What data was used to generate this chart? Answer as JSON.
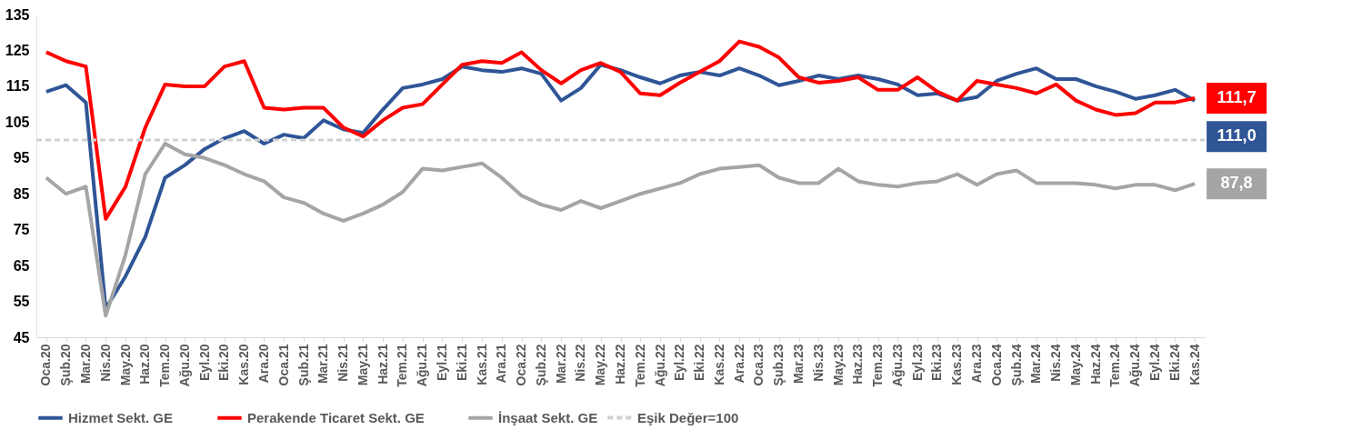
{
  "chart_data": {
    "type": "line",
    "categories": [
      "Oca.20",
      "Şub.20",
      "Mar.20",
      "Nis.20",
      "May.20",
      "Haz.20",
      "Tem.20",
      "Ağu.20",
      "Eyl.20",
      "Eki.20",
      "Kas.20",
      "Ara.20",
      "Oca.21",
      "Şub.21",
      "Mar.21",
      "Nis.21",
      "May.21",
      "Haz.21",
      "Tem.21",
      "Ağu.21",
      "Eyl.21",
      "Eki.21",
      "Kas.21",
      "Ara.21",
      "Oca.22",
      "Şub.22",
      "Mar.22",
      "Nis.22",
      "May.22",
      "Haz.22",
      "Tem.22",
      "Ağu.22",
      "Eyl.22",
      "Eki.22",
      "Kas.22",
      "Ara.22",
      "Oca.23",
      "Şub.23",
      "Mar.23",
      "Nis.23",
      "May.23",
      "Haz.23",
      "Tem.23",
      "Ağu.23",
      "Eyl.23",
      "Eki.23",
      "Kas.23",
      "Ara.23",
      "Oca.24",
      "Şub.24",
      "Mar.24",
      "Nis.24",
      "May.24",
      "Haz.24",
      "Tem.24",
      "Ağu.24",
      "Eyl.24",
      "Eki.24",
      "Kas.24"
    ],
    "series": [
      {
        "name": "Hizmet Sekt. GE",
        "color": "#2f5597",
        "values": [
          113.5,
          115.3,
          110.5,
          53,
          62,
          73,
          89.5,
          93,
          97.5,
          100.5,
          102.5,
          99,
          101.5,
          100.5,
          105.5,
          103,
          102,
          108.5,
          114.5,
          115.5,
          117,
          120.5,
          119.5,
          119,
          120,
          118.5,
          111,
          114.5,
          121,
          119.5,
          117.5,
          115.8,
          118,
          119,
          118,
          120,
          118,
          115.3,
          116.5,
          118,
          117,
          118,
          117,
          115.5,
          112.5,
          113,
          111,
          112,
          116.5,
          118.5,
          120,
          117,
          117,
          115,
          113.5,
          111.5,
          112.5,
          114,
          111.0
        ],
        "value_labels": [
          null,
          null,
          null,
          null,
          null,
          null,
          null,
          null,
          null,
          null,
          null,
          null,
          null,
          null,
          null,
          null,
          null,
          null,
          null,
          null,
          null,
          null,
          null,
          null,
          null,
          null,
          null,
          null,
          null,
          null,
          null,
          null,
          null,
          null,
          null,
          null,
          null,
          null,
          null,
          null,
          null,
          null,
          null,
          null,
          null,
          null,
          null,
          null,
          null,
          null,
          null,
          null,
          null,
          null,
          null,
          null,
          null,
          null,
          "111,0"
        ]
      },
      {
        "name": "Perakende Ticaret Sekt. GE",
        "color": "#ff0000",
        "values": [
          124.5,
          122,
          120.5,
          78,
          87,
          103.5,
          115.5,
          115,
          115,
          120.5,
          122,
          109,
          108.5,
          109,
          109,
          103.5,
          101,
          105.5,
          109,
          110,
          115.5,
          121,
          122,
          121.5,
          124.5,
          119.5,
          115.8,
          119.5,
          121.5,
          119,
          113,
          112.5,
          116,
          119,
          122,
          127.5,
          126,
          123,
          117.5,
          116,
          116.5,
          117.5,
          114,
          114,
          117.5,
          113.5,
          111,
          116.5,
          115.5,
          114.5,
          113,
          115.5,
          111,
          108.5,
          107,
          107.5,
          110.5,
          110.5,
          111.7
        ],
        "value_labels": [
          null,
          null,
          null,
          null,
          null,
          null,
          null,
          null,
          null,
          null,
          null,
          null,
          null,
          null,
          null,
          null,
          null,
          null,
          null,
          null,
          null,
          null,
          null,
          null,
          null,
          null,
          null,
          null,
          null,
          null,
          null,
          null,
          null,
          null,
          null,
          null,
          null,
          null,
          null,
          null,
          null,
          null,
          null,
          null,
          null,
          null,
          null,
          null,
          null,
          null,
          null,
          null,
          null,
          null,
          null,
          null,
          null,
          null,
          "111,7"
        ]
      },
      {
        "name": "İnşaat Sekt. GE",
        "color": "#a5a5a5",
        "values": [
          89.5,
          85,
          87,
          51,
          68,
          90.5,
          99,
          96,
          95,
          93,
          90.5,
          88.5,
          84,
          82.5,
          79.5,
          77.5,
          79.5,
          82,
          85.5,
          92,
          91.5,
          92.5,
          93.5,
          89.5,
          84.5,
          82,
          80.5,
          83,
          81,
          83,
          85,
          86.5,
          88,
          90.5,
          92,
          92.5,
          93,
          89.5,
          88,
          88,
          92,
          88.5,
          87.5,
          87,
          88,
          88.5,
          90.5,
          87.5,
          90.5,
          91.5,
          88,
          88,
          88,
          87.5,
          86.5,
          87.5,
          87.5,
          86,
          87.8
        ],
        "value_labels": [
          null,
          null,
          null,
          null,
          null,
          null,
          null,
          null,
          null,
          null,
          null,
          null,
          null,
          null,
          null,
          null,
          null,
          null,
          null,
          null,
          null,
          null,
          null,
          null,
          null,
          null,
          null,
          null,
          null,
          null,
          null,
          null,
          null,
          null,
          null,
          null,
          null,
          null,
          null,
          null,
          null,
          null,
          null,
          null,
          null,
          null,
          null,
          null,
          null,
          null,
          null,
          null,
          null,
          null,
          null,
          null,
          null,
          null,
          "87,8"
        ]
      }
    ],
    "ref_lines": [
      {
        "axis": "y",
        "value": 100,
        "label": "Eşik Değer=100",
        "color": "#d0d0d0",
        "line_style": "dashed"
      }
    ],
    "ylim": [
      45,
      135
    ],
    "yticks": [
      45,
      55,
      65,
      75,
      85,
      95,
      105,
      115,
      125,
      135
    ],
    "legend": "bottom"
  }
}
